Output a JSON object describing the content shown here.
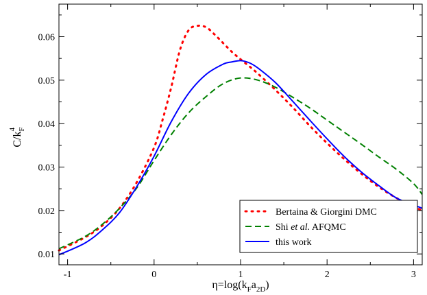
{
  "chart_data": {
    "type": "line",
    "xlim": [
      -1.1,
      3.1
    ],
    "ylim": [
      0.0075,
      0.0675
    ],
    "x_ticks": [
      -1,
      0,
      1,
      2,
      3
    ],
    "y_ticks": [
      0.01,
      0.02,
      0.03,
      0.04,
      0.05,
      0.06
    ],
    "x_tick_labels": [
      "-1",
      "0",
      "1",
      "2",
      "3"
    ],
    "y_tick_labels": [
      "0.01",
      "0.02",
      "0.03",
      "0.04",
      "0.05",
      "0.06"
    ],
    "xlabel_parts": {
      "prefix": "η=log(k",
      "sub1": "F",
      "mid": "a",
      "sub2": "2D",
      "suffix": ")"
    },
    "ylabel_parts": {
      "base": "C/k",
      "sub": "F",
      "sup": "4"
    },
    "grid": false,
    "legend_position": "bottom-right",
    "series": [
      {
        "name": "Bertaina & Giorgini DMC",
        "name_parts": {
          "before": "Bertaina & Giorgini DMC",
          "italic": "",
          "after": ""
        },
        "style": "dotted",
        "color": "#ff0000",
        "x": [
          -1.1,
          -0.8,
          -0.6,
          -0.4,
          -0.2,
          0.0,
          0.1,
          0.2,
          0.3,
          0.4,
          0.5,
          0.6,
          0.7,
          0.8,
          0.9,
          1.0,
          1.1,
          1.2,
          1.4,
          1.6,
          1.8,
          2.0,
          2.2,
          2.4,
          2.6,
          2.8,
          3.0,
          3.1
        ],
        "y": [
          0.0108,
          0.0138,
          0.0165,
          0.0205,
          0.0265,
          0.0345,
          0.041,
          0.0485,
          0.057,
          0.0615,
          0.0625,
          0.0622,
          0.0605,
          0.0585,
          0.0565,
          0.0548,
          0.0532,
          0.0515,
          0.0478,
          0.0438,
          0.0395,
          0.0355,
          0.0318,
          0.0284,
          0.0254,
          0.0229,
          0.0209,
          0.02
        ]
      },
      {
        "name": "Shi et al. AFQMC",
        "name_parts": {
          "before": "Shi ",
          "italic": "et al.",
          "after": " AFQMC"
        },
        "style": "dashed",
        "color": "#008000",
        "x": [
          -1.1,
          -0.8,
          -0.6,
          -0.4,
          -0.2,
          0.0,
          0.2,
          0.4,
          0.6,
          0.8,
          1.0,
          1.2,
          1.4,
          1.6,
          1.8,
          2.0,
          2.2,
          2.4,
          2.6,
          2.8,
          3.0,
          3.1
        ],
        "y": [
          0.0112,
          0.014,
          0.0168,
          0.0205,
          0.0252,
          0.0315,
          0.0375,
          0.0425,
          0.0462,
          0.0492,
          0.0505,
          0.05,
          0.0484,
          0.0461,
          0.0436,
          0.0408,
          0.038,
          0.0352,
          0.0323,
          0.0295,
          0.0262,
          0.0237
        ]
      },
      {
        "name": "this work",
        "name_parts": {
          "before": "this work",
          "italic": "",
          "after": ""
        },
        "style": "solid",
        "color": "#0000ff",
        "x": [
          -1.1,
          -0.8,
          -0.6,
          -0.4,
          -0.2,
          0.0,
          0.2,
          0.4,
          0.6,
          0.8,
          0.9,
          1.0,
          1.1,
          1.2,
          1.4,
          1.6,
          1.8,
          2.0,
          2.2,
          2.4,
          2.6,
          2.8,
          3.0,
          3.1
        ],
        "y": [
          0.0098,
          0.0125,
          0.0155,
          0.0195,
          0.0255,
          0.0325,
          0.0405,
          0.047,
          0.0513,
          0.0537,
          0.0542,
          0.0545,
          0.054,
          0.0528,
          0.0495,
          0.0452,
          0.0408,
          0.0365,
          0.0324,
          0.0288,
          0.0257,
          0.0229,
          0.0213,
          0.0205
        ]
      }
    ]
  }
}
